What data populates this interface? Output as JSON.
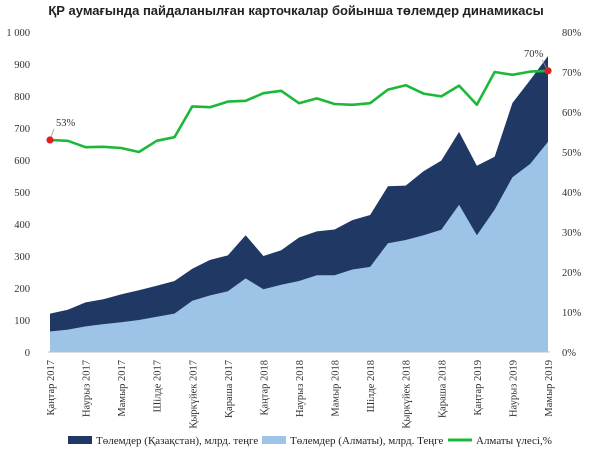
{
  "chart_data": {
    "type": "area",
    "title": "ҚР аумағында пайдаланылған карточкалар бойынша төлемдер динамикасы",
    "categories": [
      "Қаңтар 2017",
      "Ақпан 2017",
      "Наурыз 2017",
      "Сәуір 2017",
      "Мамыр 2017",
      "Маусым 2017",
      "Шілде 2017",
      "Тамыз 2017",
      "Қыркүйек 2017",
      "Қазан 2017",
      "Қараша 2017",
      "Желтоқсан 2017",
      "Қаңтар 2018",
      "Ақпан 2018",
      "Наурыз 2018",
      "Сәуір 2018",
      "Мамыр 2018",
      "Маусым 2018",
      "Шілде 2018",
      "Тамыз 2018",
      "Қыркүйек 2018",
      "Қазан 2018",
      "Қараша 2018",
      "Желтоқсан 2018",
      "Қаңтар 2019",
      "Ақпан 2019",
      "Наурыз 2019",
      "Сәуір 2019",
      "Мамыр 2019"
    ],
    "tick_labels": [
      "Қаңтар 2017",
      "Наурыз 2017",
      "Мамыр 2017",
      "Шілде 2017",
      "Қыркүйек 2017",
      "Қараша 2017",
      "Қаңтар 2018",
      "Наурыз 2018",
      "Мамыр 2018",
      "Шілде 2018",
      "Қыркүйек 2018",
      "Қараша 2018",
      "Қаңтар 2019",
      "Наурыз 2019",
      "Мамыр 2019"
    ],
    "series": [
      {
        "name": "Төлемдер (Қазақстан), млрд. теңге",
        "axis": "left",
        "kind": "area",
        "color": "#1f3864",
        "values": [
          120,
          132,
          155,
          165,
          180,
          193,
          207,
          222,
          260,
          288,
          302,
          365,
          300,
          318,
          358,
          377,
          383,
          412,
          428,
          518,
          520,
          565,
          598,
          688,
          582,
          610,
          778,
          850,
          925
        ]
      },
      {
        "name": "Төлемдер (Алматы), млрд. Теңге",
        "axis": "left",
        "kind": "area",
        "color": "#9dc3e6",
        "values": [
          64,
          70,
          80,
          87,
          93,
          100,
          110,
          120,
          160,
          177,
          190,
          230,
          196,
          210,
          222,
          240,
          240,
          258,
          266,
          340,
          350,
          365,
          382,
          460,
          365,
          445,
          546,
          588,
          657
        ]
      },
      {
        "name": "Алматы үлесі,%",
        "axis": "right",
        "kind": "line",
        "color": "#1db83a",
        "values": [
          53,
          52.8,
          51.2,
          51.3,
          51,
          50,
          52.8,
          53.7,
          61.4,
          61.2,
          62.6,
          62.8,
          64.7,
          65.3,
          62.2,
          63.4,
          62.0,
          61.8,
          62.2,
          65.6,
          66.7,
          64.6,
          63.9,
          66.6,
          61.8,
          70.0,
          69.3,
          70.1,
          70.3
        ]
      }
    ],
    "y_left": {
      "min": 0,
      "max": 1000,
      "step": 100,
      "tick_labels": [
        "0",
        "100",
        "200",
        "300",
        "400",
        "500",
        "600",
        "700",
        "800",
        "900",
        "1 000"
      ]
    },
    "y_right": {
      "min": 0,
      "max": 80,
      "step": 10,
      "tick_labels": [
        "0%",
        "10%",
        "20%",
        "30%",
        "40%",
        "50%",
        "60%",
        "70%",
        "80%"
      ]
    },
    "annotations": [
      {
        "text": "53%",
        "index": 0,
        "series": 2,
        "marker_color": "#e02020"
      },
      {
        "text": "70%",
        "index": 28,
        "series": 2,
        "marker_color": "#e02020"
      }
    ],
    "legend_position": "bottom",
    "grid": false
  }
}
